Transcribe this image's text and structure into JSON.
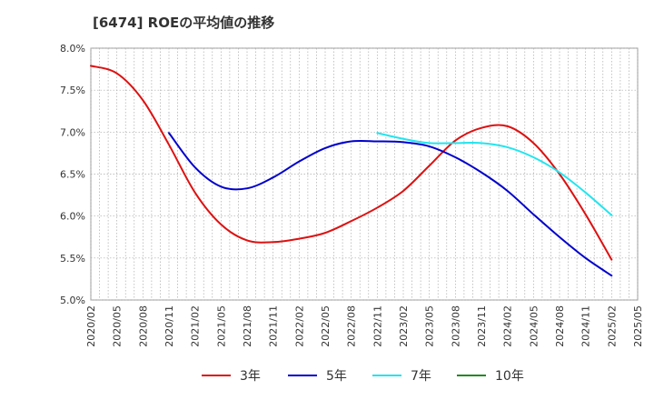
{
  "chart_data": {
    "type": "line",
    "title": "[6474]  ROEの平均値の推移",
    "xlabel": "",
    "ylabel": "",
    "ylim": [
      5.0,
      8.0
    ],
    "y_ticks": [
      "5.0%",
      "5.5%",
      "6.0%",
      "6.5%",
      "7.0%",
      "7.5%",
      "8.0%"
    ],
    "y_tick_values": [
      5.0,
      5.5,
      6.0,
      6.5,
      7.0,
      7.5,
      8.0
    ],
    "categories": [
      "2020/02",
      "2020/05",
      "2020/08",
      "2020/11",
      "2021/02",
      "2021/05",
      "2021/08",
      "2021/11",
      "2022/02",
      "2022/05",
      "2022/08",
      "2022/11",
      "2023/02",
      "2023/05",
      "2023/08",
      "2023/11",
      "2024/02",
      "2024/05",
      "2024/08",
      "2024/11",
      "2025/02",
      "2025/05"
    ],
    "grid": true,
    "legend_position": "bottom",
    "series": [
      {
        "name": "3年",
        "color": "#dd1111",
        "values": [
          7.79,
          7.7,
          7.38,
          6.85,
          6.28,
          5.9,
          5.71,
          5.69,
          5.73,
          5.8,
          5.94,
          6.1,
          6.3,
          6.6,
          6.9,
          7.05,
          7.07,
          6.87,
          6.5,
          6.02,
          5.48,
          null
        ]
      },
      {
        "name": "5年",
        "color": "#0000cc",
        "values": [
          null,
          null,
          null,
          6.99,
          6.58,
          6.35,
          6.33,
          6.46,
          6.65,
          6.81,
          6.89,
          6.89,
          6.88,
          6.83,
          6.7,
          6.52,
          6.3,
          6.02,
          5.75,
          5.5,
          5.29,
          null
        ]
      },
      {
        "name": "7年",
        "color": "#22e5ee",
        "values": [
          null,
          null,
          null,
          null,
          null,
          null,
          null,
          null,
          null,
          null,
          null,
          6.99,
          6.92,
          6.87,
          6.87,
          6.87,
          6.82,
          6.7,
          6.52,
          6.28,
          6.01,
          null
        ]
      },
      {
        "name": "10年",
        "color": "#228822",
        "values": [
          null,
          null,
          null,
          null,
          null,
          null,
          null,
          null,
          null,
          null,
          null,
          null,
          null,
          null,
          null,
          null,
          null,
          null,
          null,
          null,
          null,
          null
        ]
      }
    ]
  }
}
